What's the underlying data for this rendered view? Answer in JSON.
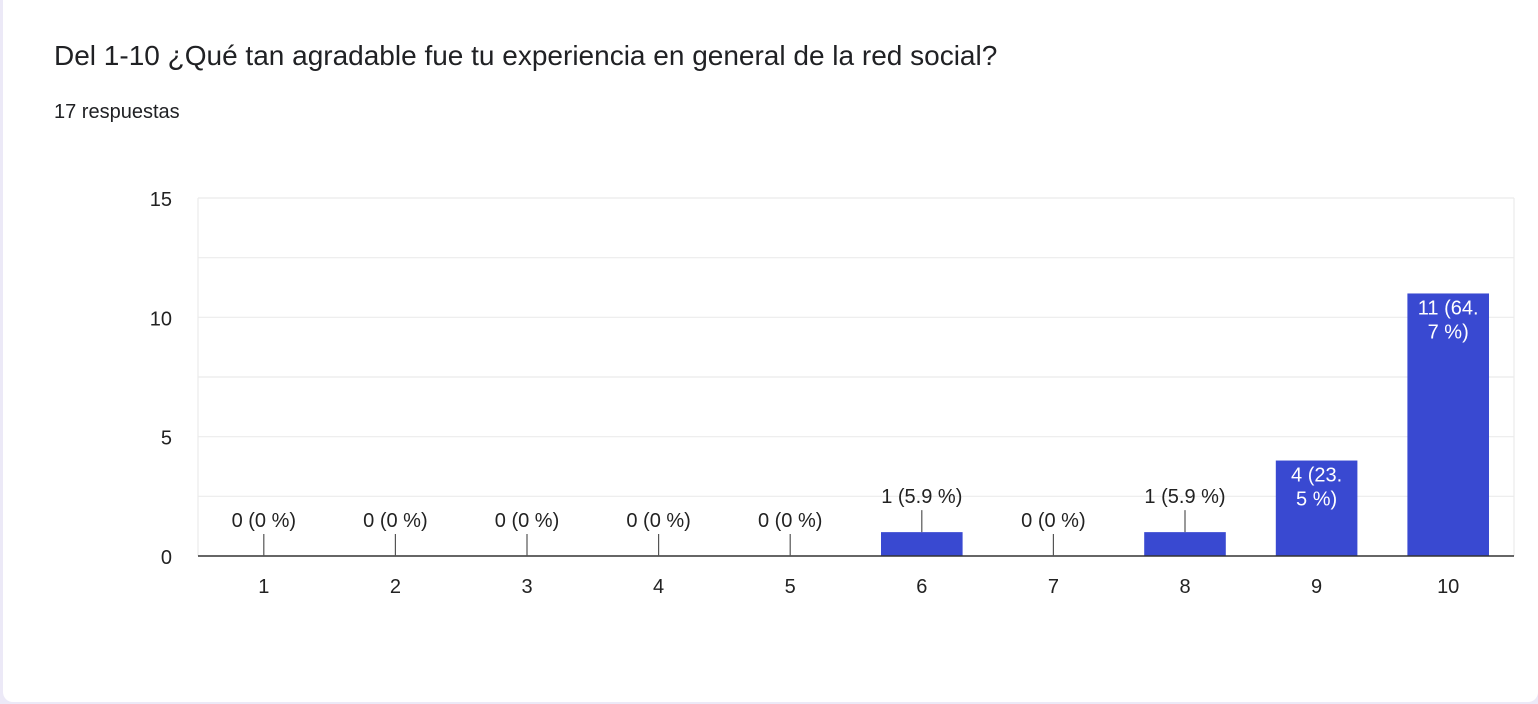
{
  "question": {
    "title": "Del 1-10 ¿Qué tan agradable fue tu experiencia en general de la red social?",
    "responses": "17 respuestas"
  },
  "colors": {
    "bar": "#3949d1",
    "grid": "#ebebeb",
    "axis": "#333333",
    "text": "#222222",
    "label_inside": "#ffffff"
  },
  "chart_data": {
    "type": "bar",
    "categories": [
      "1",
      "2",
      "3",
      "4",
      "5",
      "6",
      "7",
      "8",
      "9",
      "10"
    ],
    "values": [
      0,
      0,
      0,
      0,
      0,
      1,
      0,
      1,
      4,
      11
    ],
    "data_labels": [
      [
        "0 (0 %)"
      ],
      [
        "0 (0 %)"
      ],
      [
        "0 (0 %)"
      ],
      [
        "0 (0 %)"
      ],
      [
        "0 (0 %)"
      ],
      [
        "1 (5.9 %)"
      ],
      [
        "0 (0 %)"
      ],
      [
        "1 (5.9 %)"
      ],
      [
        "4 (23.",
        "5 %)"
      ],
      [
        "11 (64.",
        "7 %)"
      ]
    ],
    "title": "",
    "xlabel": "",
    "ylabel": "",
    "ylim": [
      0,
      15
    ],
    "yticks": [
      0,
      5,
      10,
      15
    ],
    "grid": true,
    "legend": "none"
  }
}
